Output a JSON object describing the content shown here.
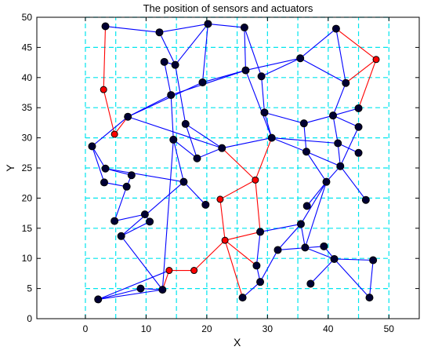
{
  "chart_data": {
    "type": "scatter",
    "title": "The position of sensors and actuators",
    "xlabel": "X",
    "ylabel": "Y",
    "xlim": [
      -8,
      55
    ],
    "ylim": [
      0,
      50
    ],
    "xticks": [
      0,
      10,
      20,
      30,
      40,
      50
    ],
    "yticks": [
      0,
      5,
      10,
      15,
      20,
      25,
      30,
      35,
      40,
      45,
      50
    ],
    "grid": true,
    "colors": {
      "sensor_fill": "#000033",
      "actuator_fill": "#ff0000",
      "sensor_link": "#0000ff",
      "actuator_link": "#ff0000",
      "grid": "#00e5ee"
    },
    "series": [
      {
        "kind": "sensor",
        "points": [
          [
            3.3,
            48.5
          ],
          [
            12.2,
            47.5
          ],
          [
            20.2,
            48.9
          ],
          [
            26.2,
            48.3
          ],
          [
            41.3,
            48.1
          ],
          [
            13,
            42.6
          ],
          [
            14.8,
            42.1
          ],
          [
            26.4,
            41.2
          ],
          [
            29,
            40.2
          ],
          [
            35.4,
            43.2
          ],
          [
            42.9,
            39.1
          ],
          [
            19.3,
            39.2
          ],
          [
            14.1,
            37.1
          ],
          [
            7,
            33.5
          ],
          [
            16.5,
            32.3
          ],
          [
            29.5,
            34.2
          ],
          [
            36,
            32.4
          ],
          [
            40.8,
            33.7
          ],
          [
            45,
            34.9
          ],
          [
            45,
            31.8
          ],
          [
            1.1,
            28.6
          ],
          [
            14.5,
            29.7
          ],
          [
            22.5,
            28.3
          ],
          [
            30.7,
            30
          ],
          [
            36.4,
            27.7
          ],
          [
            41.6,
            29.1
          ],
          [
            45,
            27.5
          ],
          [
            18.4,
            26.6
          ],
          [
            3.3,
            24.9
          ],
          [
            3.1,
            22.6
          ],
          [
            7.6,
            23.8
          ],
          [
            6.8,
            21.9
          ],
          [
            16.2,
            22.7
          ],
          [
            42,
            25.3
          ],
          [
            39.7,
            22.7
          ],
          [
            19.8,
            18.9
          ],
          [
            36.5,
            18.7
          ],
          [
            46.2,
            19.7
          ],
          [
            9.8,
            17.3
          ],
          [
            4.8,
            16.2
          ],
          [
            10.6,
            16.1
          ],
          [
            5.9,
            13.7
          ],
          [
            28.8,
            14.4
          ],
          [
            35.5,
            15.7
          ],
          [
            31.7,
            11.4
          ],
          [
            36.2,
            11.8
          ],
          [
            39.3,
            12
          ],
          [
            28.2,
            8.8
          ],
          [
            41,
            9.9
          ],
          [
            47.4,
            9.7
          ],
          [
            28.8,
            6.1
          ],
          [
            9.1,
            5
          ],
          [
            12.7,
            4.8
          ],
          [
            25.9,
            3.5
          ],
          [
            37.1,
            5.8
          ],
          [
            2.1,
            3.2
          ],
          [
            46.8,
            3.5
          ]
        ]
      },
      {
        "kind": "actuator",
        "points": [
          [
            47.9,
            43
          ],
          [
            3,
            38
          ],
          [
            4.8,
            30.6
          ],
          [
            28,
            23
          ],
          [
            22.2,
            19.8
          ],
          [
            23,
            13
          ],
          [
            13.8,
            8
          ],
          [
            17.9,
            8
          ]
        ]
      }
    ],
    "links": {
      "sensor": [
        [
          [
            3.3,
            48.5
          ],
          [
            12.2,
            47.5
          ]
        ],
        [
          [
            12.2,
            47.5
          ],
          [
            20.2,
            48.9
          ]
        ],
        [
          [
            20.2,
            48.9
          ],
          [
            26.2,
            48.3
          ]
        ],
        [
          [
            12.2,
            47.5
          ],
          [
            14.8,
            42.1
          ]
        ],
        [
          [
            20.2,
            48.9
          ],
          [
            14.8,
            42.1
          ]
        ],
        [
          [
            20.2,
            48.9
          ],
          [
            19.3,
            39.2
          ]
        ],
        [
          [
            26.2,
            48.3
          ],
          [
            26.4,
            41.2
          ]
        ],
        [
          [
            26.2,
            48.3
          ],
          [
            29,
            40.2
          ]
        ],
        [
          [
            26.4,
            41.2
          ],
          [
            35.4,
            43.2
          ]
        ],
        [
          [
            35.4,
            43.2
          ],
          [
            41.3,
            48.1
          ]
        ],
        [
          [
            35.4,
            43.2
          ],
          [
            42.9,
            39.1
          ]
        ],
        [
          [
            29,
            40.2
          ],
          [
            35.4,
            43.2
          ]
        ],
        [
          [
            13,
            42.6
          ],
          [
            14.8,
            42.1
          ]
        ],
        [
          [
            13,
            42.6
          ],
          [
            14.1,
            37.1
          ]
        ],
        [
          [
            14.8,
            42.1
          ],
          [
            16.5,
            32.3
          ]
        ],
        [
          [
            14.1,
            37.1
          ],
          [
            26.4,
            41.2
          ]
        ],
        [
          [
            14.1,
            37.1
          ],
          [
            14.5,
            29.7
          ]
        ],
        [
          [
            14.1,
            37.1
          ],
          [
            7,
            33.5
          ]
        ],
        [
          [
            19.3,
            39.2
          ],
          [
            26.4,
            41.2
          ]
        ],
        [
          [
            7,
            33.5
          ],
          [
            19.3,
            39.2
          ]
        ],
        [
          [
            7,
            33.5
          ],
          [
            1.1,
            28.6
          ]
        ],
        [
          [
            7,
            33.5
          ],
          [
            22.5,
            28.3
          ]
        ],
        [
          [
            16.5,
            32.3
          ],
          [
            18.4,
            26.6
          ]
        ],
        [
          [
            16.5,
            32.3
          ],
          [
            22.5,
            28.3
          ]
        ],
        [
          [
            14.5,
            29.7
          ],
          [
            18.4,
            26.6
          ]
        ],
        [
          [
            18.4,
            26.6
          ],
          [
            22.5,
            28.3
          ]
        ],
        [
          [
            22.5,
            28.3
          ],
          [
            30.7,
            30
          ]
        ],
        [
          [
            29,
            40.2
          ],
          [
            29.5,
            34.2
          ]
        ],
        [
          [
            26.4,
            41.2
          ],
          [
            30.7,
            30
          ]
        ],
        [
          [
            29.5,
            34.2
          ],
          [
            36,
            32.4
          ]
        ],
        [
          [
            29.5,
            34.2
          ],
          [
            30.7,
            30
          ]
        ],
        [
          [
            30.7,
            30
          ],
          [
            36.4,
            27.7
          ]
        ],
        [
          [
            30.7,
            30
          ],
          [
            41.6,
            29.1
          ]
        ],
        [
          [
            36,
            32.4
          ],
          [
            36.4,
            27.7
          ]
        ],
        [
          [
            36,
            32.4
          ],
          [
            40.8,
            33.7
          ]
        ],
        [
          [
            40.8,
            33.7
          ],
          [
            45,
            34.9
          ]
        ],
        [
          [
            40.8,
            33.7
          ],
          [
            45,
            31.8
          ]
        ],
        [
          [
            40.8,
            33.7
          ],
          [
            41.6,
            29.1
          ]
        ],
        [
          [
            42.9,
            39.1
          ],
          [
            40.8,
            33.7
          ]
        ],
        [
          [
            41.3,
            48.1
          ],
          [
            42.9,
            39.1
          ]
        ],
        [
          [
            41.6,
            29.1
          ],
          [
            45,
            27.5
          ]
        ],
        [
          [
            41.6,
            29.1
          ],
          [
            42,
            25.3
          ]
        ],
        [
          [
            45,
            31.8
          ],
          [
            42,
            25.3
          ]
        ],
        [
          [
            36.4,
            27.7
          ],
          [
            42,
            25.3
          ]
        ],
        [
          [
            42,
            25.3
          ],
          [
            39.7,
            22.7
          ]
        ],
        [
          [
            42,
            25.3
          ],
          [
            46.2,
            19.7
          ]
        ],
        [
          [
            39.7,
            22.7
          ],
          [
            36.5,
            18.7
          ]
        ],
        [
          [
            39.7,
            22.7
          ],
          [
            35.5,
            15.7
          ]
        ],
        [
          [
            39.7,
            22.7
          ],
          [
            36.2,
            11.8
          ]
        ],
        [
          [
            36.4,
            27.7
          ],
          [
            39.7,
            22.7
          ]
        ],
        [
          [
            1.1,
            28.6
          ],
          [
            3.3,
            24.9
          ]
        ],
        [
          [
            1.1,
            28.6
          ],
          [
            3.1,
            22.6
          ]
        ],
        [
          [
            3.3,
            24.9
          ],
          [
            7.6,
            23.8
          ]
        ],
        [
          [
            3.3,
            24.9
          ],
          [
            16.2,
            22.7
          ]
        ],
        [
          [
            7.6,
            23.8
          ],
          [
            6.8,
            21.9
          ]
        ],
        [
          [
            3.1,
            22.6
          ],
          [
            6.8,
            21.9
          ]
        ],
        [
          [
            6.8,
            21.9
          ],
          [
            4.8,
            16.2
          ]
        ],
        [
          [
            16.2,
            22.7
          ],
          [
            14.5,
            29.7
          ]
        ],
        [
          [
            16.2,
            22.7
          ],
          [
            19.8,
            18.9
          ]
        ],
        [
          [
            16.2,
            22.7
          ],
          [
            5.9,
            13.7
          ]
        ],
        [
          [
            9.8,
            17.3
          ],
          [
            10.6,
            16.1
          ]
        ],
        [
          [
            4.8,
            16.2
          ],
          [
            9.8,
            17.3
          ]
        ],
        [
          [
            5.9,
            13.7
          ],
          [
            10.6,
            16.1
          ]
        ],
        [
          [
            5.9,
            13.7
          ],
          [
            12.7,
            4.8
          ]
        ],
        [
          [
            28.8,
            14.4
          ],
          [
            35.5,
            15.7
          ]
        ],
        [
          [
            35.5,
            15.7
          ],
          [
            31.7,
            11.4
          ]
        ],
        [
          [
            35.5,
            15.7
          ],
          [
            36.2,
            11.8
          ]
        ],
        [
          [
            31.7,
            11.4
          ],
          [
            39.3,
            12
          ]
        ],
        [
          [
            28.8,
            14.4
          ],
          [
            28.2,
            8.8
          ]
        ],
        [
          [
            36.2,
            11.8
          ],
          [
            41,
            9.9
          ]
        ],
        [
          [
            39.3,
            12
          ],
          [
            41,
            9.9
          ]
        ],
        [
          [
            41,
            9.9
          ],
          [
            47.4,
            9.7
          ]
        ],
        [
          [
            41,
            9.9
          ],
          [
            46.8,
            3.5
          ]
        ],
        [
          [
            47.4,
            9.7
          ],
          [
            46.8,
            3.5
          ]
        ],
        [
          [
            41,
            9.9
          ],
          [
            37.1,
            5.8
          ]
        ],
        [
          [
            28.8,
            6.1
          ],
          [
            31.7,
            11.4
          ]
        ],
        [
          [
            25.9,
            3.5
          ],
          [
            28.8,
            6.1
          ]
        ],
        [
          [
            28.2,
            8.8
          ],
          [
            28.8,
            6.1
          ]
        ],
        [
          [
            12.7,
            4.8
          ],
          [
            9.1,
            5
          ]
        ],
        [
          [
            2.1,
            3.2
          ],
          [
            9.1,
            5
          ]
        ],
        [
          [
            2.1,
            3.2
          ],
          [
            13.8,
            8
          ]
        ],
        [
          [
            12.7,
            4.8
          ],
          [
            14.5,
            29.7
          ]
        ],
        [
          [
            2.1,
            3.2
          ],
          [
            12.7,
            4.8
          ]
        ]
      ],
      "actuator": [
        [
          [
            47.9,
            43
          ],
          [
            42.9,
            39.1
          ]
        ],
        [
          [
            47.9,
            43
          ],
          [
            41.3,
            48.1
          ]
        ],
        [
          [
            47.9,
            43
          ],
          [
            45,
            34.9
          ]
        ],
        [
          [
            3,
            38
          ],
          [
            3.3,
            48.5
          ]
        ],
        [
          [
            3,
            38
          ],
          [
            4.8,
            30.6
          ]
        ],
        [
          [
            4.8,
            30.6
          ],
          [
            7,
            33.5
          ]
        ],
        [
          [
            28,
            23
          ],
          [
            22.5,
            28.3
          ]
        ],
        [
          [
            28,
            23
          ],
          [
            30.7,
            30
          ]
        ],
        [
          [
            28,
            23
          ],
          [
            22.2,
            19.8
          ]
        ],
        [
          [
            28,
            23
          ],
          [
            28.8,
            14.4
          ]
        ],
        [
          [
            22.2,
            19.8
          ],
          [
            23,
            13
          ]
        ],
        [
          [
            23,
            13
          ],
          [
            28.8,
            14.4
          ]
        ],
        [
          [
            23,
            13
          ],
          [
            28.2,
            8.8
          ]
        ],
        [
          [
            23,
            13
          ],
          [
            25.9,
            3.5
          ]
        ],
        [
          [
            23,
            13
          ],
          [
            17.9,
            8
          ]
        ],
        [
          [
            17.9,
            8
          ],
          [
            13.8,
            8
          ]
        ],
        [
          [
            13.8,
            8
          ],
          [
            12.7,
            4.8
          ]
        ]
      ]
    }
  }
}
